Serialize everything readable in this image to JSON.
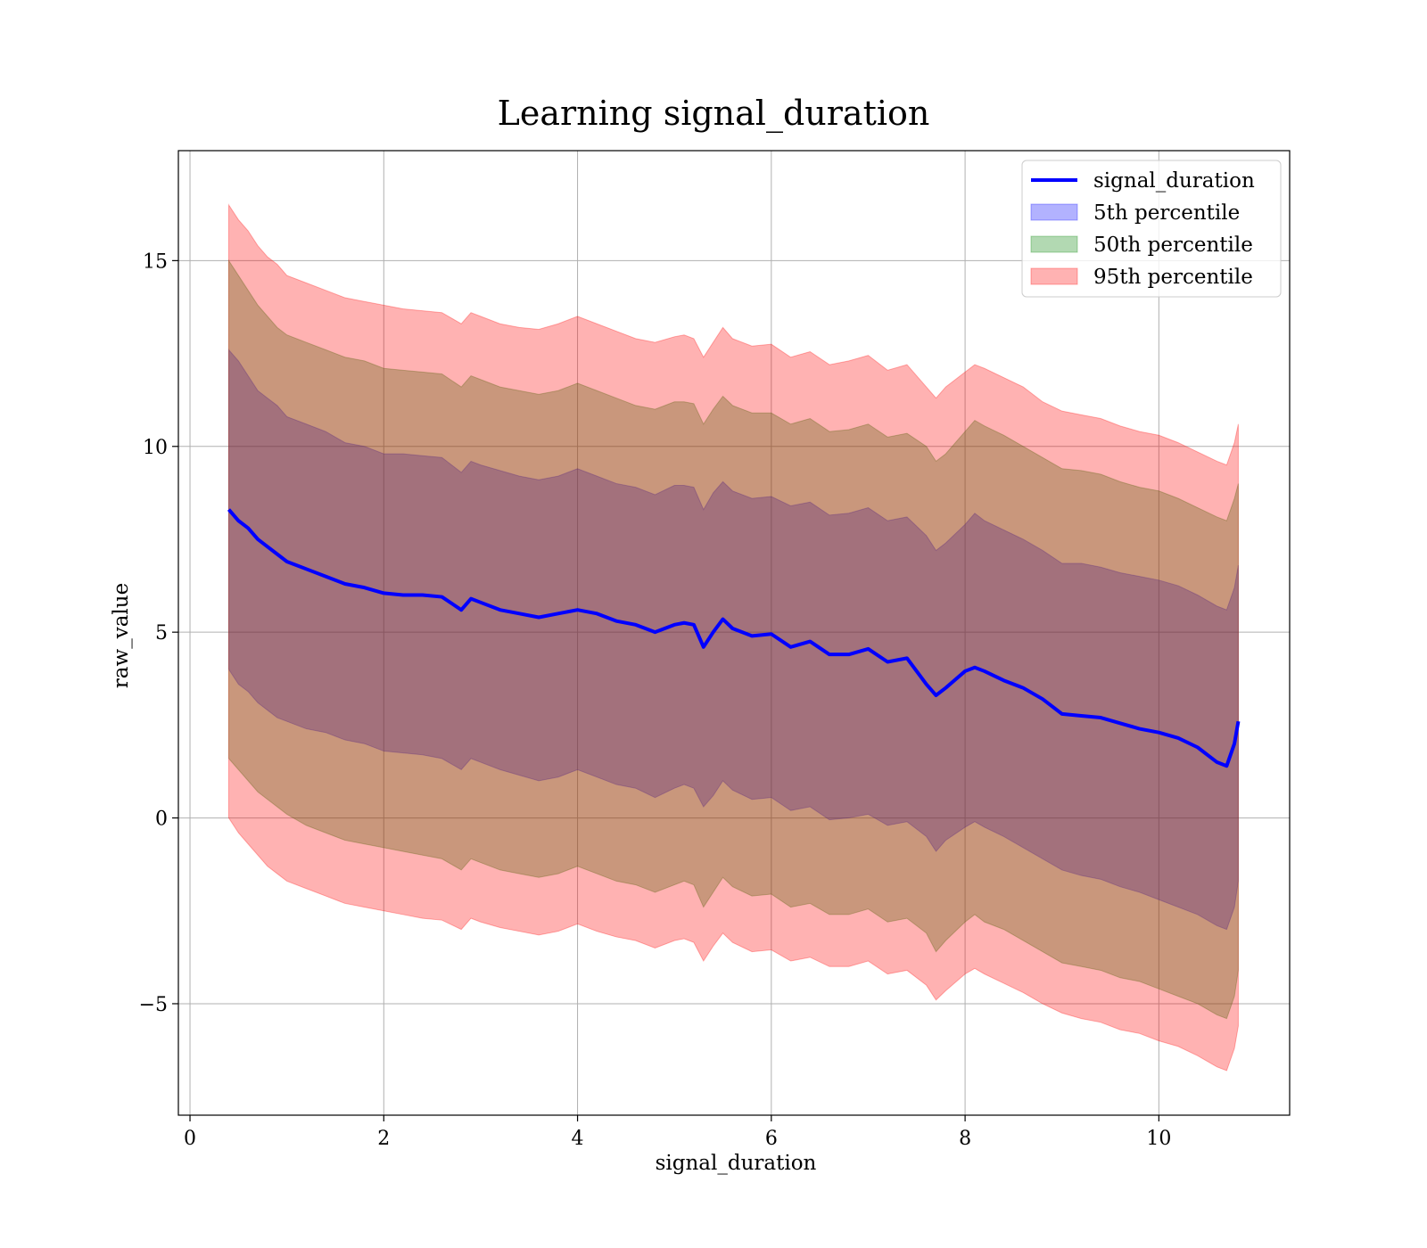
{
  "chart_data": {
    "type": "line",
    "title": "Learning signal_duration",
    "xlabel": "signal_duration",
    "ylabel": "raw_value",
    "xlim": [
      -0.12,
      11.35
    ],
    "ylim": [
      -8.0,
      17.96
    ],
    "x_ticks": [
      0,
      2,
      4,
      6,
      8,
      10
    ],
    "y_ticks": [
      -5,
      0,
      5,
      10,
      15
    ],
    "x_tick_labels": [
      "0",
      "2",
      "4",
      "6",
      "8",
      "10"
    ],
    "y_tick_labels": [
      "−5",
      "0",
      "5",
      "10",
      "15"
    ],
    "grid": true,
    "legend_position": "top-right",
    "legend": [
      {
        "label": "signal_duration",
        "kind": "line",
        "color": "#0000ff"
      },
      {
        "label": "5th percentile",
        "kind": "patch",
        "color": "#0000ff"
      },
      {
        "label": "50th percentile",
        "kind": "patch",
        "color": "#008000"
      },
      {
        "label": "95th percentile",
        "kind": "patch",
        "color": "#ff0000"
      }
    ],
    "x": [
      0.4,
      0.5,
      0.6,
      0.7,
      0.8,
      0.9,
      1.0,
      1.2,
      1.4,
      1.6,
      1.8,
      2.0,
      2.2,
      2.4,
      2.6,
      2.8,
      2.9,
      3.0,
      3.2,
      3.4,
      3.6,
      3.8,
      4.0,
      4.2,
      4.4,
      4.6,
      4.8,
      5.0,
      5.1,
      5.2,
      5.3,
      5.4,
      5.5,
      5.6,
      5.8,
      6.0,
      6.2,
      6.4,
      6.6,
      6.8,
      7.0,
      7.2,
      7.4,
      7.6,
      7.7,
      7.8,
      8.0,
      8.1,
      8.2,
      8.4,
      8.6,
      8.8,
      9.0,
      9.2,
      9.4,
      9.6,
      9.8,
      10.0,
      10.2,
      10.4,
      10.6,
      10.7,
      10.78,
      10.82
    ],
    "mean": [
      8.3,
      8.0,
      7.8,
      7.5,
      7.3,
      7.1,
      6.9,
      6.7,
      6.5,
      6.3,
      6.2,
      6.05,
      6.0,
      6.0,
      5.95,
      5.6,
      5.9,
      5.8,
      5.6,
      5.5,
      5.4,
      5.5,
      5.6,
      5.5,
      5.3,
      5.2,
      5.0,
      5.2,
      5.25,
      5.2,
      4.6,
      5.0,
      5.35,
      5.1,
      4.9,
      4.95,
      4.6,
      4.75,
      4.4,
      4.4,
      4.55,
      4.2,
      4.3,
      3.6,
      3.3,
      3.5,
      3.95,
      4.05,
      3.95,
      3.7,
      3.5,
      3.2,
      2.8,
      2.75,
      2.7,
      2.55,
      2.4,
      2.3,
      2.15,
      1.9,
      1.5,
      1.4,
      2.0,
      2.6
    ],
    "p5_upper": [
      12.6,
      12.3,
      11.9,
      11.5,
      11.3,
      11.1,
      10.8,
      10.6,
      10.4,
      10.1,
      10.0,
      9.8,
      9.8,
      9.75,
      9.7,
      9.3,
      9.6,
      9.5,
      9.35,
      9.2,
      9.1,
      9.2,
      9.4,
      9.2,
      9.0,
      8.9,
      8.7,
      8.95,
      8.95,
      8.9,
      8.3,
      8.75,
      9.05,
      8.8,
      8.6,
      8.65,
      8.4,
      8.5,
      8.15,
      8.2,
      8.35,
      8.0,
      8.1,
      7.6,
      7.2,
      7.4,
      7.9,
      8.2,
      8.0,
      7.75,
      7.5,
      7.2,
      6.85,
      6.85,
      6.75,
      6.6,
      6.5,
      6.4,
      6.25,
      6.0,
      5.7,
      5.6,
      6.2,
      6.8
    ],
    "p5_lower": [
      4.0,
      3.6,
      3.4,
      3.1,
      2.9,
      2.7,
      2.6,
      2.4,
      2.3,
      2.1,
      2.0,
      1.8,
      1.75,
      1.7,
      1.6,
      1.3,
      1.6,
      1.5,
      1.3,
      1.15,
      1.0,
      1.1,
      1.3,
      1.1,
      0.9,
      0.8,
      0.55,
      0.8,
      0.9,
      0.8,
      0.3,
      0.6,
      1.0,
      0.75,
      0.5,
      0.55,
      0.2,
      0.3,
      -0.05,
      0.0,
      0.1,
      -0.2,
      -0.1,
      -0.5,
      -0.9,
      -0.6,
      -0.25,
      -0.1,
      -0.25,
      -0.5,
      -0.8,
      -1.1,
      -1.4,
      -1.55,
      -1.65,
      -1.85,
      -2.0,
      -2.2,
      -2.4,
      -2.6,
      -2.9,
      -3.0,
      -2.4,
      -1.7
    ],
    "p50_upper": [
      15.0,
      14.6,
      14.2,
      13.8,
      13.5,
      13.2,
      13.0,
      12.8,
      12.6,
      12.4,
      12.3,
      12.1,
      12.05,
      12.0,
      11.95,
      11.6,
      11.9,
      11.8,
      11.6,
      11.5,
      11.4,
      11.5,
      11.7,
      11.5,
      11.3,
      11.1,
      11.0,
      11.2,
      11.2,
      11.15,
      10.6,
      11.0,
      11.35,
      11.1,
      10.9,
      10.9,
      10.6,
      10.75,
      10.4,
      10.45,
      10.6,
      10.25,
      10.35,
      10.0,
      9.6,
      9.8,
      10.4,
      10.7,
      10.55,
      10.3,
      10.0,
      9.7,
      9.4,
      9.35,
      9.25,
      9.05,
      8.9,
      8.8,
      8.6,
      8.35,
      8.1,
      8.0,
      8.6,
      9.0
    ],
    "p50_lower": [
      1.6,
      1.3,
      1.0,
      0.7,
      0.5,
      0.3,
      0.1,
      -0.2,
      -0.4,
      -0.6,
      -0.7,
      -0.8,
      -0.9,
      -1.0,
      -1.1,
      -1.4,
      -1.1,
      -1.2,
      -1.4,
      -1.5,
      -1.6,
      -1.5,
      -1.3,
      -1.5,
      -1.7,
      -1.8,
      -2.0,
      -1.8,
      -1.7,
      -1.8,
      -2.4,
      -2.0,
      -1.6,
      -1.85,
      -2.1,
      -2.05,
      -2.4,
      -2.3,
      -2.6,
      -2.6,
      -2.45,
      -2.8,
      -2.7,
      -3.1,
      -3.6,
      -3.3,
      -2.8,
      -2.6,
      -2.8,
      -3.0,
      -3.3,
      -3.6,
      -3.9,
      -4.0,
      -4.1,
      -4.3,
      -4.4,
      -4.6,
      -4.8,
      -5.0,
      -5.3,
      -5.4,
      -4.8,
      -4.1
    ],
    "p95_upper": [
      16.5,
      16.1,
      15.8,
      15.4,
      15.1,
      14.9,
      14.6,
      14.4,
      14.2,
      14.0,
      13.9,
      13.8,
      13.7,
      13.65,
      13.6,
      13.3,
      13.6,
      13.5,
      13.3,
      13.2,
      13.15,
      13.3,
      13.5,
      13.3,
      13.1,
      12.9,
      12.8,
      12.95,
      13.0,
      12.9,
      12.4,
      12.8,
      13.2,
      12.9,
      12.7,
      12.75,
      12.4,
      12.55,
      12.2,
      12.3,
      12.45,
      12.05,
      12.2,
      11.6,
      11.3,
      11.6,
      12.0,
      12.2,
      12.1,
      11.85,
      11.6,
      11.2,
      10.95,
      10.85,
      10.75,
      10.55,
      10.4,
      10.3,
      10.1,
      9.85,
      9.6,
      9.5,
      10.1,
      10.6
    ],
    "p95_lower": [
      0.0,
      -0.4,
      -0.7,
      -1.0,
      -1.3,
      -1.5,
      -1.7,
      -1.9,
      -2.1,
      -2.3,
      -2.4,
      -2.5,
      -2.6,
      -2.7,
      -2.75,
      -3.0,
      -2.7,
      -2.8,
      -2.95,
      -3.05,
      -3.15,
      -3.05,
      -2.85,
      -3.05,
      -3.2,
      -3.3,
      -3.5,
      -3.3,
      -3.25,
      -3.35,
      -3.85,
      -3.45,
      -3.1,
      -3.35,
      -3.6,
      -3.55,
      -3.85,
      -3.75,
      -4.0,
      -4.0,
      -3.85,
      -4.2,
      -4.1,
      -4.5,
      -4.9,
      -4.65,
      -4.2,
      -4.05,
      -4.2,
      -4.45,
      -4.7,
      -5.0,
      -5.25,
      -5.4,
      -5.5,
      -5.7,
      -5.8,
      -6.0,
      -6.15,
      -6.4,
      -6.7,
      -6.8,
      -6.2,
      -5.6
    ]
  }
}
